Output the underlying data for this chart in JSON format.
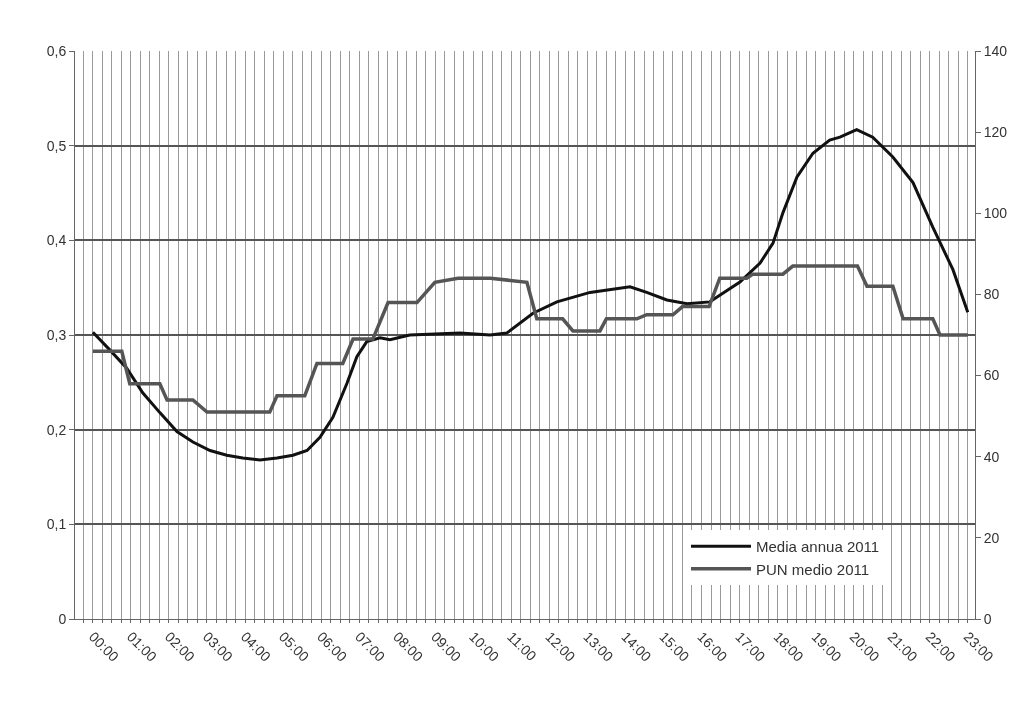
{
  "chart_data": {
    "type": "line",
    "xlim": [
      -0.47,
      23.19
    ],
    "xticks": [
      {
        "value": 0,
        "label": "00:00"
      },
      {
        "value": 1,
        "label": "01:00"
      },
      {
        "value": 2,
        "label": "02:00"
      },
      {
        "value": 3,
        "label": "03:00"
      },
      {
        "value": 4,
        "label": "04:00"
      },
      {
        "value": 5,
        "label": "05:00"
      },
      {
        "value": 6,
        "label": "06:00"
      },
      {
        "value": 7,
        "label": "07:00"
      },
      {
        "value": 8,
        "label": "08:00"
      },
      {
        "value": 9,
        "label": "09:00"
      },
      {
        "value": 10,
        "label": "10:00"
      },
      {
        "value": 11,
        "label": "11:00"
      },
      {
        "value": 12,
        "label": "12:00"
      },
      {
        "value": 13,
        "label": "13:00"
      },
      {
        "value": 14,
        "label": "14:00"
      },
      {
        "value": 15,
        "label": "15:00"
      },
      {
        "value": 16,
        "label": "16:00"
      },
      {
        "value": 17,
        "label": "17:00"
      },
      {
        "value": 18,
        "label": "18:00"
      },
      {
        "value": 19,
        "label": "19:00"
      },
      {
        "value": 20,
        "label": "20:00"
      },
      {
        "value": 21,
        "label": "21:00"
      },
      {
        "value": 22,
        "label": "22:00"
      },
      {
        "value": 23,
        "label": "23:00"
      },
      {
        "value": -0.25,
        "label": null
      },
      {
        "value": 0.25,
        "label": null
      },
      {
        "value": 0.5,
        "label": null
      },
      {
        "value": 0.75,
        "label": null
      },
      {
        "value": 1.25,
        "label": null
      },
      {
        "value": 1.5,
        "label": null
      },
      {
        "value": 1.75,
        "label": null
      },
      {
        "value": 2.25,
        "label": null
      },
      {
        "value": 2.5,
        "label": null
      },
      {
        "value": 2.75,
        "label": null
      },
      {
        "value": 3.25,
        "label": null
      },
      {
        "value": 3.5,
        "label": null
      },
      {
        "value": 3.75,
        "label": null
      },
      {
        "value": 4.25,
        "label": null
      },
      {
        "value": 4.5,
        "label": null
      },
      {
        "value": 4.75,
        "label": null
      },
      {
        "value": 5.25,
        "label": null
      },
      {
        "value": 5.5,
        "label": null
      },
      {
        "value": 5.75,
        "label": null
      },
      {
        "value": 6.25,
        "label": null
      },
      {
        "value": 6.5,
        "label": null
      },
      {
        "value": 6.75,
        "label": null
      },
      {
        "value": 7.25,
        "label": null
      },
      {
        "value": 7.5,
        "label": null
      },
      {
        "value": 7.75,
        "label": null
      },
      {
        "value": 8.25,
        "label": null
      },
      {
        "value": 8.5,
        "label": null
      },
      {
        "value": 8.75,
        "label": null
      },
      {
        "value": 9.25,
        "label": null
      },
      {
        "value": 9.5,
        "label": null
      },
      {
        "value": 9.75,
        "label": null
      },
      {
        "value": 10.25,
        "label": null
      },
      {
        "value": 10.5,
        "label": null
      },
      {
        "value": 10.75,
        "label": null
      },
      {
        "value": 11.25,
        "label": null
      },
      {
        "value": 11.5,
        "label": null
      },
      {
        "value": 11.75,
        "label": null
      },
      {
        "value": 12.25,
        "label": null
      },
      {
        "value": 12.5,
        "label": null
      },
      {
        "value": 12.75,
        "label": null
      },
      {
        "value": 13.25,
        "label": null
      },
      {
        "value": 13.5,
        "label": null
      },
      {
        "value": 13.75,
        "label": null
      },
      {
        "value": 14.25,
        "label": null
      },
      {
        "value": 14.5,
        "label": null
      },
      {
        "value": 14.75,
        "label": null
      },
      {
        "value": 15.25,
        "label": null
      },
      {
        "value": 15.5,
        "label": null
      },
      {
        "value": 15.75,
        "label": null
      },
      {
        "value": 16.25,
        "label": null
      },
      {
        "value": 16.5,
        "label": null
      },
      {
        "value": 16.75,
        "label": null
      },
      {
        "value": 17.25,
        "label": null
      },
      {
        "value": 17.5,
        "label": null
      },
      {
        "value": 17.75,
        "label": null
      },
      {
        "value": 18.25,
        "label": null
      },
      {
        "value": 18.5,
        "label": null
      },
      {
        "value": 18.75,
        "label": null
      },
      {
        "value": 19.25,
        "label": null
      },
      {
        "value": 19.5,
        "label": null
      },
      {
        "value": 19.75,
        "label": null
      },
      {
        "value": 20.25,
        "label": null
      },
      {
        "value": 20.5,
        "label": null
      },
      {
        "value": 20.75,
        "label": null
      },
      {
        "value": 21.25,
        "label": null
      },
      {
        "value": 21.5,
        "label": null
      },
      {
        "value": 21.75,
        "label": null
      },
      {
        "value": 22.25,
        "label": null
      },
      {
        "value": 22.5,
        "label": null
      },
      {
        "value": 22.75,
        "label": null
      }
    ],
    "ylim": [
      0,
      0.6
    ],
    "yticks": [
      0,
      {
        "value": 0.1,
        "label": "0,1"
      },
      {
        "value": 0.2,
        "label": "0,2"
      },
      {
        "value": 0.3,
        "label": "0,3"
      },
      {
        "value": 0.4,
        "label": "0,4"
      },
      {
        "value": 0.5,
        "label": "0,5"
      },
      {
        "value": 0.6,
        "label": "0,6"
      }
    ],
    "y2lim": [
      0,
      140
    ],
    "y2ticks": [
      0,
      20,
      40,
      60,
      80,
      100,
      120,
      140
    ],
    "grid": true,
    "legend": "bottom right",
    "marker": "none",
    "line_style": "solid",
    "series": [
      {
        "name": "Media annua 2011",
        "color": "#111111",
        "x": [
          0,
          0.45,
          0.89,
          1.31,
          1.76,
          2.21,
          2.63,
          3.08,
          3.52,
          3.94,
          4.39,
          4.84,
          5.26,
          5.63,
          5.97,
          6.31,
          6.68,
          6.94,
          7.2,
          7.55,
          7.81,
          8.33,
          9.65,
          10.44,
          10.88,
          11.57,
          12.2,
          13.07,
          14.12,
          14.56,
          15.09,
          15.62,
          16.22,
          16.48,
          17.01,
          17.54,
          17.88,
          18.14,
          18.51,
          18.93,
          19.37,
          19.64,
          20.08,
          20.5,
          21.03,
          21.56,
          22.08,
          22.61,
          23
        ],
        "values": [
          0.303,
          0.284,
          0.265,
          0.239,
          0.218,
          0.198,
          0.187,
          0.178,
          0.173,
          0.17,
          0.168,
          0.17,
          0.173,
          0.178,
          0.192,
          0.213,
          0.249,
          0.277,
          0.293,
          0.297,
          0.295,
          0.3,
          0.302,
          0.3,
          0.302,
          0.323,
          0.335,
          0.345,
          0.351,
          0.345,
          0.337,
          0.333,
          0.335,
          0.342,
          0.356,
          0.376,
          0.397,
          0.429,
          0.467,
          0.492,
          0.506,
          0.509,
          0.517,
          0.509,
          0.488,
          0.461,
          0.414,
          0.369,
          0.324
        ]
      },
      {
        "name": "PUN medio 2011",
        "color": "#555555",
        "axis": "y2",
        "x": [
          0,
          0.76,
          0.97,
          1.76,
          1.95,
          2.63,
          3.0,
          4.65,
          4.84,
          5.57,
          5.89,
          6.57,
          6.84,
          7.36,
          7.76,
          8.52,
          8.99,
          9.6,
          10.45,
          11.41,
          11.67,
          12.35,
          12.62,
          13.33,
          13.5,
          14.3,
          14.56,
          15.25,
          15.5,
          16.2,
          16.48,
          17.19,
          17.35,
          18.14,
          18.4,
          20.1,
          20.35,
          21.03,
          21.3,
          22.08,
          22.27,
          23
        ],
        "values": [
          66,
          66,
          58,
          58,
          54,
          54,
          51,
          51,
          55,
          55,
          63,
          63,
          69,
          69,
          78,
          78,
          83,
          84,
          84,
          83,
          74,
          74,
          71,
          71,
          74,
          74,
          75,
          75,
          77,
          77,
          84,
          84,
          85,
          85,
          87,
          87,
          82,
          82,
          74,
          74,
          70,
          70
        ]
      }
    ]
  }
}
